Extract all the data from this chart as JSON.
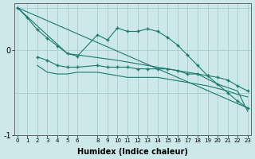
{
  "xlabel": "Humidex (Indice chaleur)",
  "bg_color": "#cce8e8",
  "grid_color": "#aacccc",
  "line_color": "#1a7a6e",
  "x_ticks": [
    0,
    1,
    2,
    3,
    4,
    5,
    6,
    8,
    9,
    10,
    11,
    12,
    13,
    14,
    15,
    16,
    17,
    18,
    19,
    20,
    21,
    22,
    23
  ],
  "y_ticks": [
    0,
    -1
  ],
  "xlim": [
    -0.3,
    23.3
  ],
  "ylim": [
    -0.85,
    0.55
  ],
  "line1_x": [
    0,
    1,
    2,
    3,
    4,
    5,
    6,
    8,
    9,
    10,
    11,
    12,
    13,
    14,
    15,
    16,
    17,
    18,
    19,
    20,
    21,
    22,
    23
  ],
  "line1_y": [
    0.5,
    0.38,
    0.24,
    0.14,
    0.05,
    -0.04,
    -0.07,
    0.18,
    0.12,
    0.26,
    0.22,
    0.22,
    0.25,
    0.22,
    0.15,
    0.06,
    -0.06,
    -0.18,
    -0.3,
    -0.4,
    -0.5,
    -0.6,
    -0.68
  ],
  "line2_x": [
    2,
    3,
    4,
    5,
    6,
    8,
    9,
    10,
    11,
    12,
    13,
    14,
    15,
    16,
    17,
    18,
    19,
    20,
    21,
    22,
    23
  ],
  "line2_y": [
    -0.08,
    -0.12,
    -0.18,
    -0.2,
    -0.2,
    -0.18,
    -0.2,
    -0.2,
    -0.2,
    -0.22,
    -0.22,
    -0.22,
    -0.22,
    -0.24,
    -0.28,
    -0.28,
    -0.3,
    -0.32,
    -0.35,
    -0.42,
    -0.48
  ],
  "line3_x": [
    2,
    3,
    4,
    5,
    6,
    8,
    9,
    10,
    11,
    12,
    13,
    14,
    15,
    16,
    17,
    18,
    19,
    20,
    21,
    22,
    23
  ],
  "line3_y": [
    -0.18,
    -0.26,
    -0.28,
    -0.28,
    -0.26,
    -0.26,
    -0.28,
    -0.3,
    -0.32,
    -0.32,
    -0.32,
    -0.32,
    -0.34,
    -0.36,
    -0.38,
    -0.4,
    -0.42,
    -0.45,
    -0.48,
    -0.52,
    -0.55
  ],
  "line4_x": [
    0,
    23
  ],
  "line4_y": [
    0.5,
    -0.68
  ],
  "line5_x": [
    0,
    5,
    10,
    15,
    18,
    20,
    22,
    23
  ],
  "line5_y": [
    0.5,
    -0.04,
    -0.12,
    -0.22,
    -0.28,
    -0.4,
    -0.48,
    -0.72
  ]
}
